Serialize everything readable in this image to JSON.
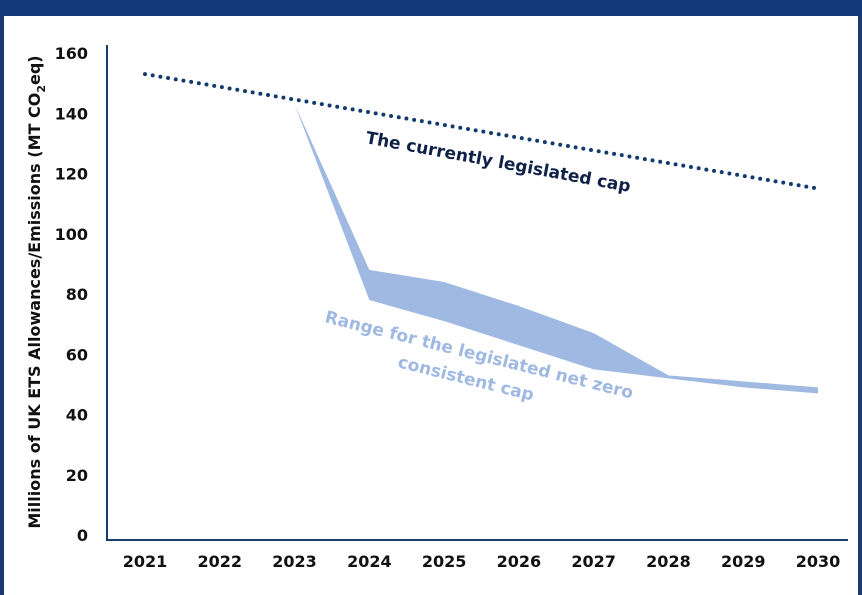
{
  "header": {
    "title": ""
  },
  "chart_data": {
    "type": "line",
    "title": "",
    "ylabel_main": "Millions of UK ETS Allowances/Emissions (MT CO",
    "ylabel_sub": "2",
    "ylabel_end": "eq)",
    "xlabel": "",
    "ylim": [
      0,
      160
    ],
    "y_ticks": [
      "0",
      "20",
      "40",
      "60",
      "80",
      "100",
      "120",
      "140",
      "160"
    ],
    "x_ticks": [
      "2021",
      "2022",
      "2023",
      "2024",
      "2025",
      "2026",
      "2027",
      "2028",
      "2029",
      "2030"
    ],
    "series": [
      {
        "name": "The currently legislated cap",
        "style": "dotted",
        "color": "#123a6e",
        "x": [
          2021,
          2030
        ],
        "values": [
          153,
          115
        ]
      }
    ],
    "band": {
      "name": "Range for the legislated net zero consistent cap",
      "label_line1": "Range for the legislated net zero",
      "label_line2": "consistent cap",
      "color": "#9fb9e3",
      "x": [
        2023,
        2024,
        2025,
        2026,
        2027,
        2028,
        2029,
        2030
      ],
      "upper": [
        143,
        88,
        84,
        76,
        67,
        53,
        51,
        49
      ],
      "lower": [
        143,
        78,
        71,
        63,
        55,
        52,
        49,
        47
      ]
    }
  }
}
